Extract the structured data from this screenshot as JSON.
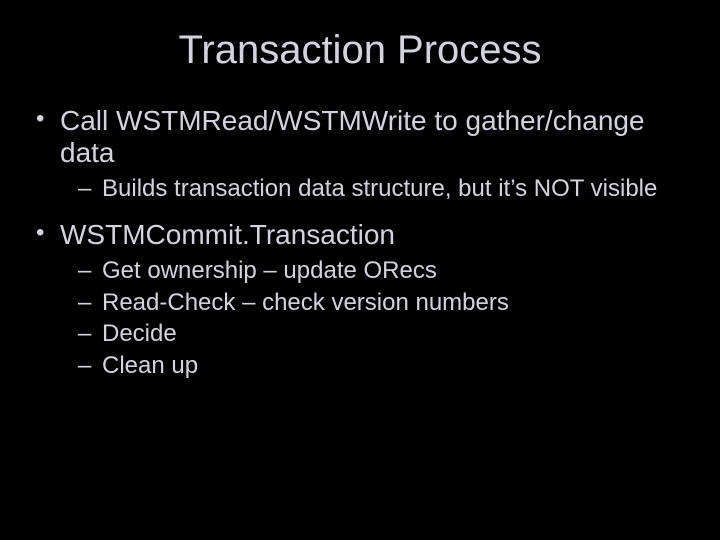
{
  "slide": {
    "title": "Transaction Process",
    "background_color": "#000000",
    "text_color": "#d2d3de",
    "title_fontsize": 40,
    "l1_fontsize": 28,
    "l2_fontsize": 24,
    "bullets": [
      {
        "text": "Call WSTMRead/WSTMWrite to gather/change data",
        "sub": [
          "Builds transaction data structure, but it’s NOT visible"
        ]
      },
      {
        "text": "WSTMCommit.Transaction",
        "sub": [
          "Get ownership – update ORecs",
          "Read-Check – check version numbers",
          "Decide",
          "Clean up"
        ]
      }
    ]
  }
}
